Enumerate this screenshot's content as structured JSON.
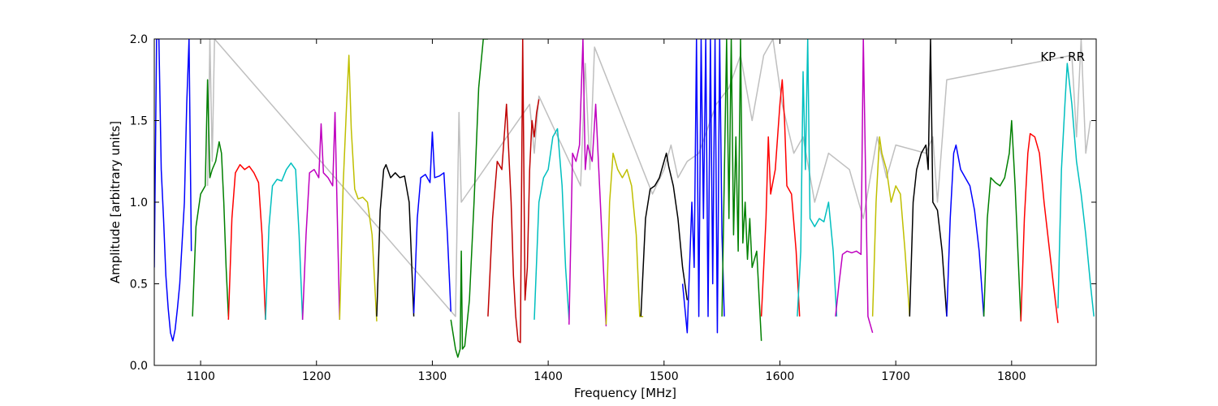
{
  "chart_data": {
    "type": "line",
    "annotation": "KP - RR",
    "xlabel": "Frequency [MHz]",
    "ylabel": "Amplitude [arbitrary units]",
    "xlim": [
      1060,
      1873
    ],
    "ylim": [
      0.0,
      2.0
    ],
    "xticks": [
      1100,
      1200,
      1300,
      1400,
      1500,
      1600,
      1700,
      1800
    ],
    "xtick_labels": [
      "1100",
      "1200",
      "1300",
      "1400",
      "1500",
      "1600",
      "1700",
      "1800"
    ],
    "yticks": [
      0.0,
      0.5,
      1.0,
      1.5,
      2.0
    ],
    "ytick_labels": [
      "0.0",
      "0.5",
      "1.0",
      "1.5",
      "2.0"
    ],
    "grid": false,
    "background_series": {
      "name": "",
      "color": "#bfbfbf",
      "x": [
        1106,
        1108,
        1110,
        1112,
        1320,
        1323,
        1325,
        1384,
        1388,
        1392,
        1428,
        1432,
        1436,
        1440,
        1490,
        1500,
        1506,
        1512,
        1520,
        1530,
        1545,
        1556,
        1566,
        1576,
        1586,
        1594,
        1602,
        1612,
        1620,
        1630,
        1642,
        1660,
        1672,
        1684,
        1692,
        1700,
        1726,
        1732,
        1736,
        1744,
        1852,
        1856,
        1860,
        1864,
        1868
      ],
      "y": [
        1.1,
        2.0,
        1.25,
        2.0,
        0.3,
        1.55,
        1.0,
        1.6,
        1.3,
        1.65,
        1.1,
        1.85,
        1.2,
        1.95,
        1.05,
        1.2,
        1.35,
        1.15,
        1.25,
        1.3,
        1.6,
        1.7,
        1.9,
        1.5,
        1.9,
        2.0,
        1.6,
        1.3,
        1.4,
        1.0,
        1.3,
        1.2,
        0.9,
        1.4,
        1.15,
        1.35,
        1.3,
        1.4,
        1.0,
        1.75,
        1.9,
        1.4,
        2.0,
        1.3,
        1.5
      ]
    },
    "series": [
      {
        "color": "#0000ff",
        "x": [
          1060,
          1062,
          1064,
          1066,
          1068,
          1070,
          1072,
          1074,
          1076,
          1078,
          1080,
          1082,
          1084,
          1086,
          1088,
          1090,
          1092
        ],
        "y": [
          0.6,
          2.0,
          2.0,
          1.2,
          0.9,
          0.55,
          0.35,
          0.2,
          0.15,
          0.22,
          0.35,
          0.5,
          0.75,
          1.0,
          1.6,
          2.0,
          0.7
        ]
      },
      {
        "color": "#008000",
        "x": [
          1093,
          1096,
          1100,
          1104,
          1106,
          1108,
          1110,
          1113,
          1116,
          1118,
          1120,
          1122,
          1124
        ],
        "y": [
          0.3,
          0.85,
          1.05,
          1.1,
          1.75,
          1.15,
          1.2,
          1.25,
          1.37,
          1.3,
          1.0,
          0.6,
          0.3
        ]
      },
      {
        "color": "#ff0000",
        "x": [
          1124,
          1127,
          1130,
          1134,
          1138,
          1142,
          1146,
          1150,
          1153,
          1156
        ],
        "y": [
          0.28,
          0.9,
          1.18,
          1.23,
          1.2,
          1.22,
          1.18,
          1.12,
          0.8,
          0.28
        ]
      },
      {
        "color": "#00bfbf",
        "x": [
          1156,
          1159,
          1162,
          1166,
          1170,
          1174,
          1178,
          1182,
          1185,
          1188
        ],
        "y": [
          0.28,
          0.85,
          1.1,
          1.14,
          1.13,
          1.2,
          1.24,
          1.2,
          0.8,
          0.28
        ]
      },
      {
        "color": "#bf00bf",
        "x": [
          1188,
          1191,
          1194,
          1198,
          1202,
          1204,
          1206,
          1210,
          1214,
          1216,
          1218,
          1220
        ],
        "y": [
          0.28,
          0.8,
          1.18,
          1.2,
          1.15,
          1.48,
          1.18,
          1.15,
          1.1,
          1.55,
          0.9,
          0.28
        ]
      },
      {
        "color": "#bfbf00",
        "x": [
          1220,
          1223,
          1226,
          1228,
          1230,
          1233,
          1236,
          1240,
          1244,
          1248,
          1252
        ],
        "y": [
          0.28,
          1.1,
          1.6,
          1.9,
          1.45,
          1.08,
          1.02,
          1.03,
          1.0,
          0.8,
          0.27
        ]
      },
      {
        "color": "#000000",
        "x": [
          1252,
          1255,
          1258,
          1260,
          1264,
          1268,
          1272,
          1276,
          1280,
          1284
        ],
        "y": [
          0.3,
          0.95,
          1.2,
          1.23,
          1.15,
          1.18,
          1.15,
          1.16,
          1.0,
          0.3
        ]
      },
      {
        "color": "#0000ff",
        "x": [
          1284,
          1287,
          1290,
          1294,
          1298,
          1300,
          1302,
          1306,
          1310,
          1313,
          1316
        ],
        "y": [
          0.32,
          0.9,
          1.15,
          1.17,
          1.12,
          1.43,
          1.15,
          1.16,
          1.18,
          0.8,
          0.33
        ]
      },
      {
        "color": "#008000",
        "x": [
          1316,
          1320,
          1322,
          1324,
          1325,
          1326,
          1328,
          1332,
          1336,
          1340,
          1344,
          1348
        ],
        "y": [
          0.28,
          0.1,
          0.05,
          0.1,
          0.7,
          0.1,
          0.12,
          0.4,
          1.0,
          1.7,
          2.0,
          2.0
        ]
      },
      {
        "color": "#bf0000",
        "x": [
          1348,
          1352,
          1356,
          1360,
          1364,
          1368,
          1370,
          1372,
          1374,
          1376,
          1378,
          1380,
          1382,
          1384,
          1386,
          1388,
          1390,
          1392
        ],
        "y": [
          0.3,
          0.9,
          1.25,
          1.2,
          1.6,
          1.0,
          0.55,
          0.3,
          0.15,
          0.14,
          2.0,
          0.4,
          0.6,
          1.2,
          1.5,
          1.4,
          1.55,
          1.63
        ]
      },
      {
        "color": "#00bfbf",
        "x": [
          1388,
          1392,
          1396,
          1400,
          1404,
          1408,
          1412,
          1415,
          1418
        ],
        "y": [
          0.28,
          1.0,
          1.15,
          1.2,
          1.4,
          1.45,
          1.1,
          0.6,
          0.28
        ]
      },
      {
        "color": "#bf00bf",
        "x": [
          1418,
          1421,
          1424,
          1427,
          1430,
          1432,
          1434,
          1438,
          1441,
          1444,
          1447,
          1450
        ],
        "y": [
          0.25,
          1.3,
          1.25,
          1.35,
          2.0,
          1.2,
          1.35,
          1.25,
          1.6,
          1.15,
          0.7,
          0.24
        ]
      },
      {
        "color": "#bfbf00",
        "x": [
          1450,
          1453,
          1456,
          1460,
          1464,
          1468,
          1472,
          1476,
          1479,
          1482
        ],
        "y": [
          0.25,
          1.0,
          1.3,
          1.2,
          1.15,
          1.2,
          1.1,
          0.8,
          0.3,
          0.3
        ]
      },
      {
        "color": "#000000",
        "x": [
          1480,
          1484,
          1488,
          1492,
          1496,
          1500,
          1502,
          1504,
          1508,
          1512,
          1516,
          1520
        ],
        "y": [
          0.3,
          0.9,
          1.08,
          1.1,
          1.15,
          1.25,
          1.3,
          1.22,
          1.1,
          0.9,
          0.6,
          0.4
        ]
      },
      {
        "color": "#0000ff",
        "x": [
          1516,
          1520,
          1524,
          1526,
          1528,
          1530,
          1532,
          1534,
          1536,
          1538,
          1540,
          1542,
          1544,
          1546,
          1548,
          1550,
          1552
        ],
        "y": [
          0.5,
          0.2,
          1.0,
          0.6,
          2.0,
          0.3,
          2.0,
          0.9,
          2.0,
          0.3,
          2.0,
          0.5,
          2.0,
          0.2,
          2.0,
          0.8,
          0.3
        ]
      },
      {
        "color": "#008000",
        "x": [
          1550,
          1554,
          1556,
          1558,
          1560,
          1562,
          1564,
          1566,
          1568,
          1570,
          1572,
          1574,
          1576,
          1580,
          1584
        ],
        "y": [
          0.3,
          2.0,
          0.9,
          2.0,
          0.8,
          1.4,
          0.7,
          2.0,
          0.75,
          1.0,
          0.65,
          0.9,
          0.6,
          0.7,
          0.15
        ]
      },
      {
        "color": "#ff0000",
        "x": [
          1584,
          1588,
          1590,
          1592,
          1596,
          1600,
          1602,
          1604,
          1606,
          1610,
          1614,
          1617
        ],
        "y": [
          0.3,
          0.9,
          1.4,
          1.05,
          1.2,
          1.6,
          1.75,
          1.5,
          1.1,
          1.05,
          0.7,
          0.3
        ]
      },
      {
        "color": "#00bfbf",
        "x": [
          1615,
          1618,
          1620,
          1622,
          1624,
          1626,
          1630,
          1634,
          1638,
          1642,
          1646,
          1649
        ],
        "y": [
          0.3,
          0.7,
          1.8,
          1.2,
          2.0,
          0.9,
          0.85,
          0.9,
          0.88,
          1.0,
          0.7,
          0.3
        ]
      },
      {
        "color": "#bf00bf",
        "x": [
          1648,
          1651,
          1654,
          1658,
          1662,
          1666,
          1670,
          1672,
          1676,
          1680
        ],
        "y": [
          0.3,
          0.5,
          0.68,
          0.7,
          0.69,
          0.7,
          0.68,
          2.0,
          0.3,
          0.2
        ]
      },
      {
        "color": "#bfbf00",
        "x": [
          1680,
          1683,
          1686,
          1688,
          1692,
          1696,
          1700,
          1704,
          1708,
          1712
        ],
        "y": [
          0.3,
          1.0,
          1.4,
          1.3,
          1.2,
          1.0,
          1.1,
          1.05,
          0.7,
          0.3
        ]
      },
      {
        "color": "#000000",
        "x": [
          1712,
          1715,
          1718,
          1722,
          1726,
          1728,
          1730,
          1732,
          1736,
          1740,
          1744
        ],
        "y": [
          0.3,
          1.0,
          1.2,
          1.3,
          1.35,
          1.2,
          2.0,
          1.0,
          0.95,
          0.7,
          0.3
        ]
      },
      {
        "color": "#0000ff",
        "x": [
          1744,
          1747,
          1750,
          1752,
          1756,
          1760,
          1764,
          1768,
          1772,
          1776
        ],
        "y": [
          0.3,
          0.9,
          1.3,
          1.35,
          1.2,
          1.15,
          1.1,
          0.95,
          0.7,
          0.3
        ]
      },
      {
        "color": "#008000",
        "x": [
          1776,
          1779,
          1782,
          1786,
          1790,
          1794,
          1798,
          1800,
          1803,
          1806,
          1808
        ],
        "y": [
          0.3,
          0.9,
          1.15,
          1.12,
          1.1,
          1.15,
          1.3,
          1.5,
          1.1,
          0.6,
          0.27
        ]
      },
      {
        "color": "#ff0000",
        "x": [
          1808,
          1811,
          1814,
          1816,
          1820,
          1824,
          1828,
          1832,
          1836,
          1840
        ],
        "y": [
          0.27,
          0.9,
          1.3,
          1.42,
          1.4,
          1.3,
          1.0,
          0.75,
          0.5,
          0.26
        ]
      },
      {
        "color": "#00bfbf",
        "x": [
          1840,
          1843,
          1846,
          1848,
          1852,
          1856,
          1860,
          1864,
          1868,
          1871
        ],
        "y": [
          0.35,
          1.2,
          1.6,
          1.85,
          1.6,
          1.25,
          1.05,
          0.8,
          0.5,
          0.3
        ]
      }
    ]
  }
}
